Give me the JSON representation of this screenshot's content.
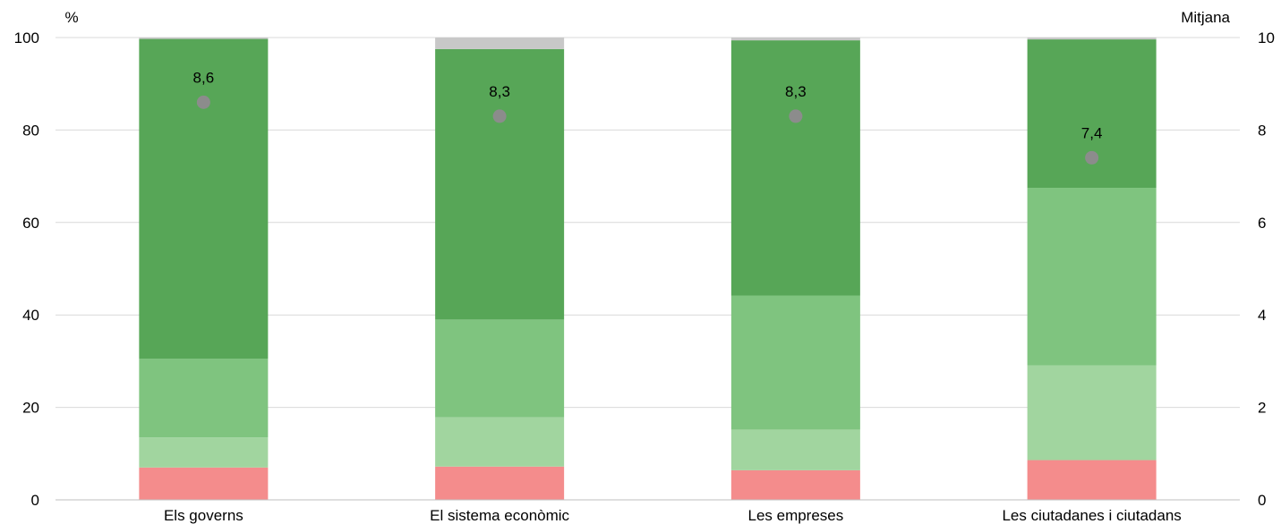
{
  "chart_data": {
    "type": "bar",
    "stacked": true,
    "categories": [
      "Els governs",
      "El sistema econòmic",
      "Les empreses",
      "Les ciutadanes i ciutadans"
    ],
    "series": [
      {
        "color": "#f48c8c",
        "values": [
          7.0,
          7.2,
          6.4,
          8.6
        ]
      },
      {
        "color": "#a1d59f",
        "values": [
          6.5,
          10.7,
          8.8,
          20.5
        ]
      },
      {
        "color": "#7fc47f",
        "values": [
          17.0,
          21.1,
          29.0,
          38.4
        ]
      },
      {
        "color": "#57a657",
        "values": [
          69.2,
          58.5,
          55.2,
          32.1
        ]
      },
      {
        "color": "#c8c8c8",
        "values": [
          0.3,
          2.5,
          0.6,
          0.4
        ]
      }
    ],
    "mean": {
      "values": [
        8.6,
        8.3,
        8.3,
        7.4
      ],
      "labels": [
        "8,6",
        "8,3",
        "8,3",
        "7,4"
      ],
      "color": "#8c8c8c",
      "axis": "right"
    },
    "y_left": {
      "label": "%",
      "ylim": [
        0,
        100
      ],
      "ticks": [
        "0",
        "20",
        "40",
        "60",
        "80",
        "100"
      ]
    },
    "y_right": {
      "label": "Mitjana",
      "ylim": [
        0,
        10
      ],
      "ticks": [
        "0",
        "2",
        "4",
        "6",
        "8",
        "10"
      ]
    },
    "grid": true,
    "legend": "none"
  }
}
